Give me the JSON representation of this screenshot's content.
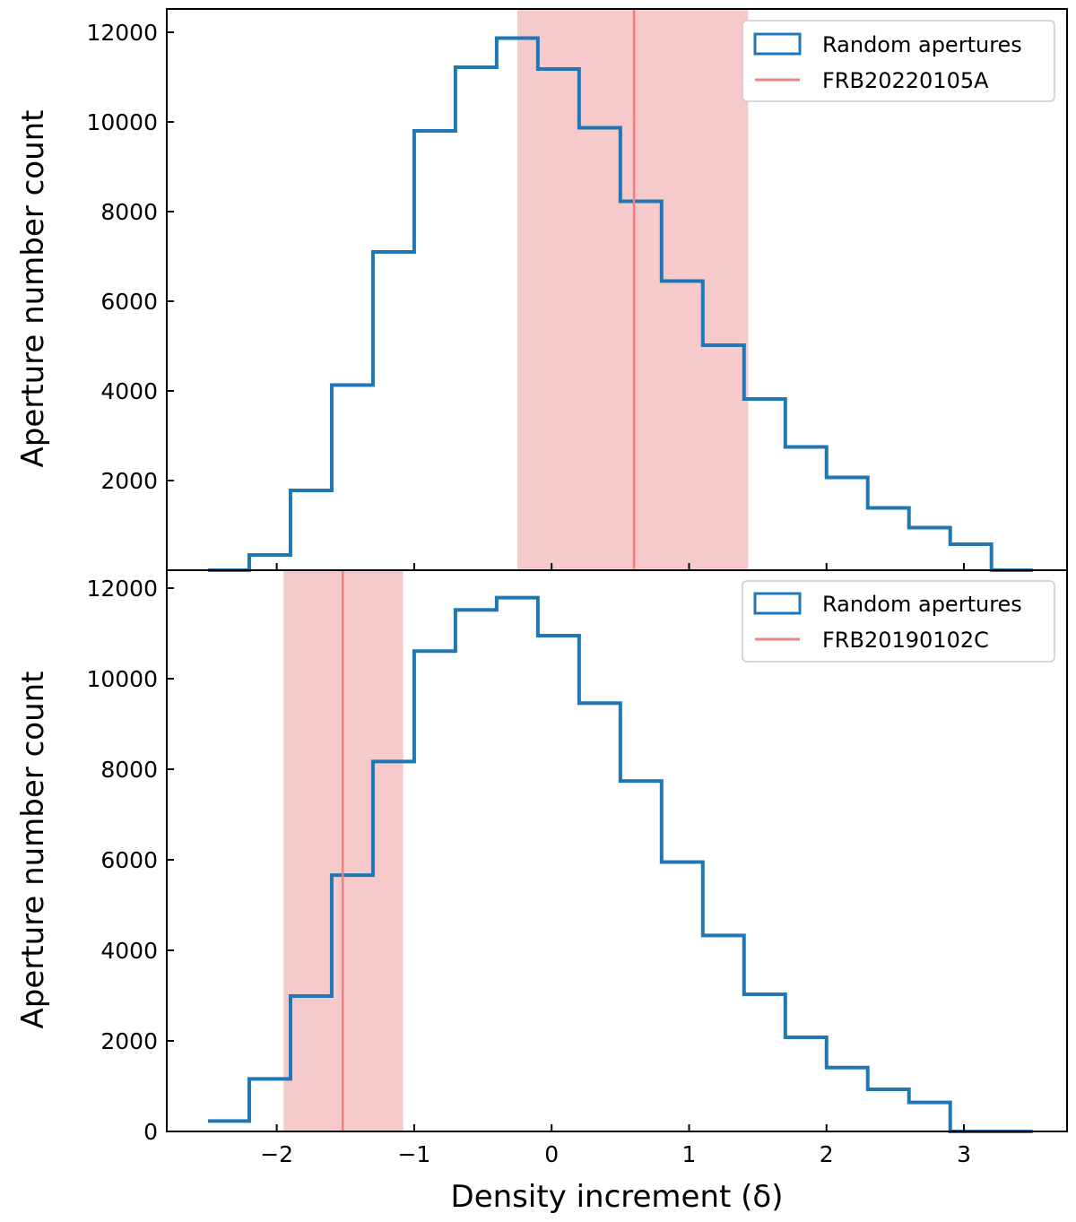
{
  "chart_data": [
    {
      "type": "histogram",
      "panel": "top",
      "ylabel": "Aperture number count",
      "xlim": [
        -2.8,
        3.75
      ],
      "ylim": [
        0,
        12500
      ],
      "yticks": [
        2000,
        4000,
        6000,
        8000,
        10000,
        12000
      ],
      "ytick_labels": [
        "2000",
        "4000",
        "6000",
        "8000",
        "10000",
        "12000"
      ],
      "bin_edges": [
        -2.5,
        -2.2,
        -1.9,
        -1.6,
        -1.3,
        -1.0,
        -0.7,
        -0.4,
        -0.1,
        0.2,
        0.5,
        0.8,
        1.1,
        1.4,
        1.7,
        2.0,
        2.3,
        2.6,
        2.9,
        3.2,
        3.5
      ],
      "counts": [
        0,
        340,
        1780,
        4130,
        7100,
        9800,
        11220,
        11870,
        11180,
        9870,
        8230,
        6450,
        5020,
        3820,
        2750,
        2070,
        1390,
        950,
        580,
        0
      ],
      "vline": {
        "x": 0.6,
        "band": [
          -0.25,
          1.43
        ]
      },
      "legend": {
        "histogram_label": "Random apertures",
        "line_label": "FRB20220105A",
        "placement": "top-right"
      },
      "colors": {
        "histogram": "#1f77b4",
        "line": "#f08080",
        "band": "#f6caca"
      }
    },
    {
      "type": "histogram",
      "panel": "bottom",
      "xlabel": "Density increment (δ)",
      "ylabel": "Aperture number count",
      "xlim": [
        -2.8,
        3.75
      ],
      "ylim": [
        0,
        12500
      ],
      "xticks": [
        -2,
        -1,
        0,
        1,
        2,
        3
      ],
      "xtick_labels": [
        "−2",
        "−1",
        "0",
        "1",
        "2",
        "3"
      ],
      "yticks": [
        0,
        2000,
        4000,
        6000,
        8000,
        10000,
        12000
      ],
      "ytick_labels": [
        "0",
        "2000",
        "4000",
        "6000",
        "8000",
        "10000",
        "12000"
      ],
      "bin_edges": [
        -2.5,
        -2.2,
        -1.9,
        -1.6,
        -1.3,
        -1.0,
        -0.7,
        -0.4,
        -0.1,
        0.2,
        0.5,
        0.8,
        1.1,
        1.4,
        1.7,
        2.0,
        2.3,
        2.6,
        2.9,
        3.2,
        3.5
      ],
      "counts": [
        230,
        1160,
        2990,
        5660,
        8170,
        10610,
        11520,
        11790,
        10950,
        9460,
        7740,
        5950,
        4330,
        3030,
        2080,
        1410,
        930,
        640,
        0,
        0
      ],
      "vline": {
        "x": -1.52,
        "band": [
          -1.95,
          -1.08
        ]
      },
      "legend": {
        "histogram_label": "Random apertures",
        "line_label": "FRB20190102C",
        "placement": "top-right"
      },
      "colors": {
        "histogram": "#1f77b4",
        "line": "#f08080",
        "band": "#f6caca"
      }
    }
  ]
}
